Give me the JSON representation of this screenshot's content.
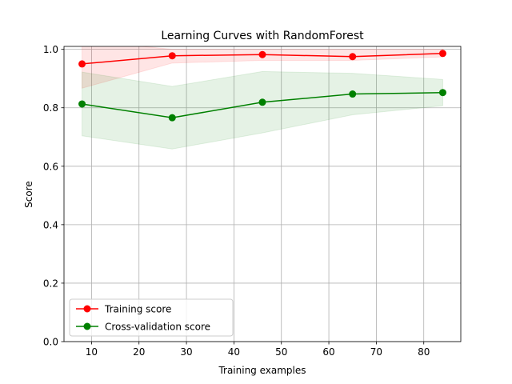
{
  "chart_data": {
    "type": "line",
    "title": "Learning Curves with RandomForest",
    "xlabel": "Training examples",
    "ylabel": "Score",
    "xlim": [
      4.2,
      87.8
    ],
    "ylim": [
      0.0,
      1.01
    ],
    "xticks": [
      10,
      20,
      30,
      40,
      50,
      60,
      70,
      80
    ],
    "yticks": [
      0.0,
      0.2,
      0.4,
      0.6,
      0.8,
      1.0
    ],
    "xtick_labels": [
      "10",
      "20",
      "30",
      "40",
      "50",
      "60",
      "70",
      "80"
    ],
    "ytick_labels": [
      "0.0",
      "0.2",
      "0.4",
      "0.6",
      "0.8",
      "1.0"
    ],
    "grid": true,
    "legend_position": "lower-left",
    "x": [
      8,
      27,
      46,
      65,
      84
    ],
    "series": [
      {
        "name": "Training score",
        "color": "#ff0000",
        "fill_color": "#ff0000",
        "values": [
          0.95,
          0.978,
          0.982,
          0.975,
          0.986
        ],
        "band_upper": [
          1.03,
          1.0,
          1.0,
          1.0,
          1.0
        ],
        "band_lower": [
          0.867,
          0.953,
          0.962,
          0.962,
          0.974
        ]
      },
      {
        "name": "Cross-validation score",
        "color": "#008000",
        "fill_color": "#008000",
        "values": [
          0.813,
          0.766,
          0.819,
          0.847,
          0.852
        ],
        "band_upper": [
          0.922,
          0.873,
          0.924,
          0.918,
          0.897
        ],
        "band_lower": [
          0.704,
          0.659,
          0.714,
          0.776,
          0.807
        ]
      }
    ]
  }
}
